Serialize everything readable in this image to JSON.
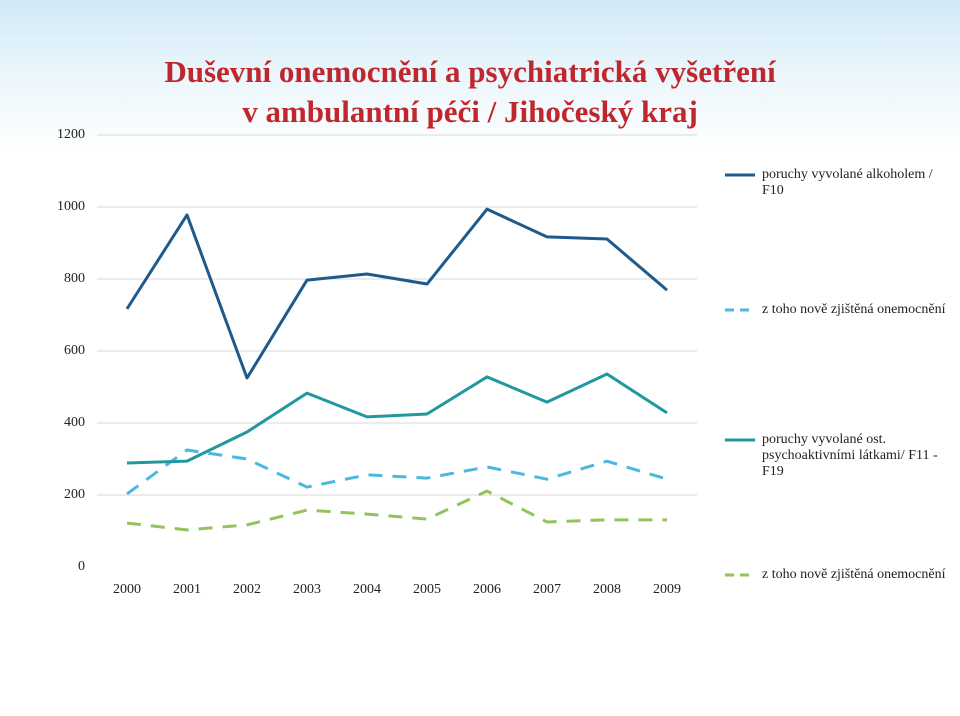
{
  "chart_data": {
    "type": "line",
    "title": [
      "Duševní onemocnění a psychiatrická vyšetření",
      "v ambulantní péči / Jihočeský kraj"
    ],
    "x": [
      2000,
      2001,
      2002,
      2003,
      2004,
      2005,
      2006,
      2007,
      2008,
      2009
    ],
    "ylim": [
      0,
      1200
    ],
    "yticks": [
      0,
      200,
      400,
      600,
      800,
      1000,
      1200
    ],
    "grid": true,
    "legend": "right",
    "series": [
      {
        "name": "poruchy vyvolané alkoholem / F10",
        "color": "#1f5a8c",
        "dashed": false,
        "values": [
          717,
          978,
          525,
          797,
          814,
          786,
          994,
          917,
          911,
          769
        ]
      },
      {
        "name": "z toho nově zjištěná onemocnění",
        "color": "#4cb8e2",
        "dashed": true,
        "values": [
          203,
          325,
          300,
          222,
          256,
          247,
          278,
          244,
          294,
          244
        ]
      },
      {
        "name": "poruchy vyvolané ost. psychoaktivními látkami/ F11 - F19",
        "color": "#21979f",
        "dashed": false,
        "values": [
          289,
          294,
          375,
          483,
          417,
          425,
          528,
          458,
          536,
          428
        ]
      },
      {
        "name": "z toho nově zjištěná onemocnění",
        "color": "#93c45a",
        "dashed": true,
        "values": [
          122,
          103,
          117,
          158,
          147,
          133,
          211,
          125,
          131,
          131
        ]
      }
    ]
  }
}
